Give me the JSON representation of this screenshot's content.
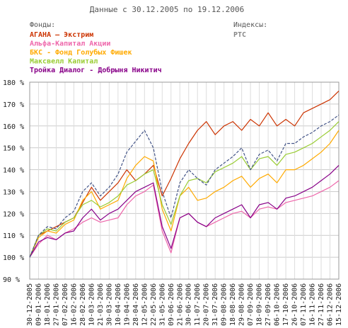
{
  "chart_data": {
    "type": "line",
    "title": "Данные с 30.12.2005 по 19.12.2006",
    "funds_heading": "Фонды:",
    "indices_heading": "Индексы:",
    "ylim": [
      90,
      180
    ],
    "y_ticks": [
      "180 %",
      "170 %",
      "160 %",
      "150 %",
      "140 %",
      "130 %",
      "120 %",
      "110 %",
      "100 %",
      "90 %"
    ],
    "y_tick_values": [
      180,
      170,
      160,
      150,
      140,
      130,
      120,
      110,
      100,
      90
    ],
    "x_labels": [
      "30-12-2005",
      "09-01-2006",
      "18-01-2006",
      "27-01-2006",
      "07-02-2006",
      "16-02-2006",
      "28-02-2006",
      "10-03-2006",
      "21-03-2006",
      "30-03-2006",
      "10-04-2006",
      "19-04-2006",
      "28-04-2006",
      "12-05-2006",
      "22-05-2006",
      "31-05-2006",
      "09-06-2006",
      "21-06-2006",
      "30-06-2006",
      "11-07-2006",
      "20-07-2006",
      "31-07-2006",
      "09-08-2006",
      "18-08-2006",
      "29-08-2006",
      "07-09-2006",
      "18-09-2006",
      "27-09-2006",
      "06-10-2006",
      "17-10-2006",
      "26-10-2006",
      "07-11-2006",
      "16-11-2006",
      "27-11-2006",
      "06-12-2006",
      "15-12-2006"
    ],
    "grid": true,
    "legend_position": "top-left",
    "series": [
      {
        "name": "АГАНА – Экстрим",
        "group": "fund",
        "color": "#cc3300",
        "dash": false,
        "values": [
          100,
          110,
          112,
          114,
          116,
          118,
          125,
          132,
          126,
          130,
          134,
          140,
          135,
          138,
          142,
          128,
          136,
          145,
          152,
          158,
          162,
          156,
          160,
          162,
          158,
          163,
          160,
          166,
          160,
          163,
          160,
          166,
          168,
          170,
          172,
          176
        ]
      },
      {
        "name": "Альфа-Капитал Акции",
        "group": "fund",
        "color": "#ee66aa",
        "dash": false,
        "values": [
          100,
          106,
          110,
          108,
          111,
          113,
          116,
          118,
          116,
          117,
          118,
          124,
          128,
          130,
          133,
          112,
          102,
          118,
          120,
          116,
          114,
          116,
          118,
          120,
          121,
          118,
          122,
          123,
          122,
          125,
          126,
          127,
          128,
          130,
          132,
          135
        ]
      },
      {
        "name": "БКС - Фонд Голубых Фишек",
        "group": "fund",
        "color": "#ffaa00",
        "dash": false,
        "values": [
          100,
          109,
          112,
          111,
          115,
          117,
          126,
          130,
          122,
          124,
          126,
          136,
          142,
          146,
          144,
          122,
          112,
          128,
          132,
          126,
          127,
          130,
          132,
          135,
          137,
          132,
          136,
          138,
          134,
          140,
          140,
          142,
          145,
          148,
          152,
          158
        ]
      },
      {
        "name": "Максвелл Капитал",
        "group": "fund",
        "color": "#99cc33",
        "dash": false,
        "values": [
          100,
          110,
          113,
          112,
          116,
          118,
          124,
          126,
          123,
          125,
          128,
          133,
          135,
          138,
          140,
          124,
          115,
          128,
          135,
          136,
          134,
          139,
          141,
          143,
          146,
          140,
          145,
          146,
          142,
          147,
          148,
          150,
          152,
          155,
          158,
          162
        ]
      },
      {
        "name": "Тройка Диалог - Добрыня Никитич",
        "group": "fund",
        "color": "#880088",
        "dash": false,
        "values": [
          100,
          107,
          109,
          108,
          111,
          112,
          118,
          122,
          117,
          120,
          122,
          126,
          130,
          132,
          134,
          114,
          104,
          118,
          120,
          116,
          114,
          118,
          120,
          122,
          124,
          118,
          124,
          125,
          122,
          127,
          128,
          130,
          132,
          135,
          138,
          142
        ]
      },
      {
        "name": "РТС",
        "group": "index",
        "color": "#445588",
        "dash": true,
        "values": [
          100,
          110,
          114,
          113,
          118,
          121,
          130,
          134,
          128,
          132,
          138,
          148,
          153,
          158,
          150,
          130,
          118,
          134,
          140,
          136,
          133,
          140,
          143,
          146,
          150,
          140,
          147,
          149,
          144,
          152,
          152,
          155,
          157,
          160,
          162,
          165
        ]
      }
    ]
  }
}
